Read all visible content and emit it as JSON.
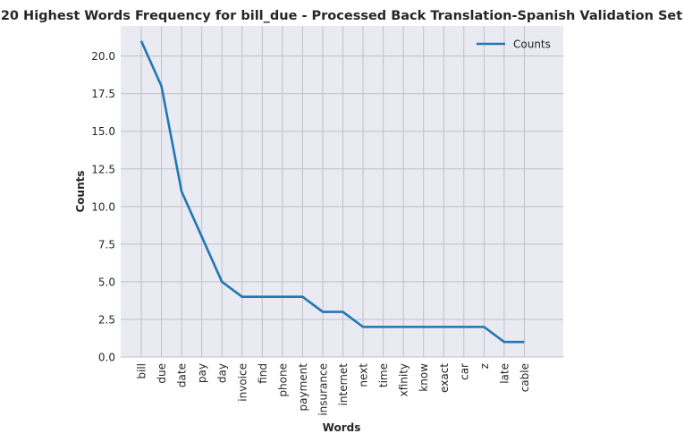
{
  "chart_data": {
    "type": "line",
    "title": "20 Highest Words Frequency for bill_due - Processed Back Translation-Spanish Validation Set",
    "xlabel": "Words",
    "ylabel": "Counts",
    "categories": [
      "bill",
      "due",
      "date",
      "pay",
      "day",
      "invoice",
      "find",
      "phone",
      "payment",
      "insurance",
      "internet",
      "next",
      "time",
      "xfinity",
      "know",
      "exact",
      "car",
      "z",
      "late",
      "cable"
    ],
    "series": [
      {
        "name": "Counts",
        "values": [
          21,
          18,
          11,
          8,
          5,
          4,
          4,
          4,
          4,
          3,
          3,
          2,
          2,
          2,
          2,
          2,
          2,
          2,
          1,
          1
        ]
      }
    ],
    "ylim": [
      0,
      22.0
    ],
    "yticks": [
      0.0,
      2.5,
      5.0,
      7.5,
      10.0,
      12.5,
      15.0,
      17.5,
      20.0
    ],
    "ytick_labels": [
      "0.0",
      "2.5",
      "5.0",
      "7.5",
      "10.0",
      "12.5",
      "15.0",
      "17.5",
      "20.0"
    ],
    "grid": true,
    "legend_position": "top-right",
    "colors": {
      "line": "#1f77b4",
      "plot_bg": "#eaeaf2",
      "grid": "#c0c0c8",
      "text": "#262626"
    }
  }
}
